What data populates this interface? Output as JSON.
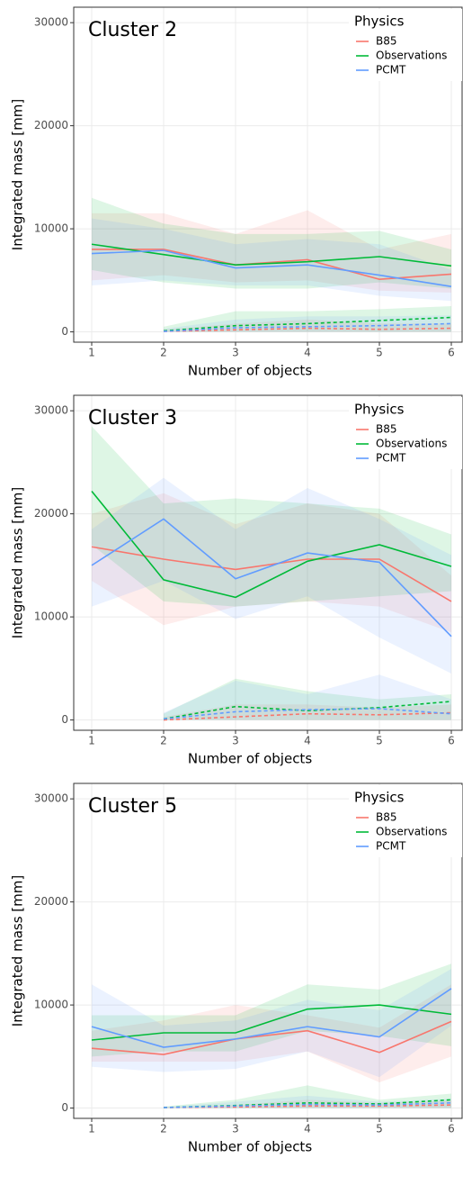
{
  "chart_data": [
    {
      "type": "line",
      "annotation": "Cluster 2",
      "xlabel": "Number of objects",
      "ylabel": "Integrated mass [mm]",
      "legend_title": "Physics",
      "legend": "top-right",
      "grid": true,
      "x": [
        1,
        2,
        3,
        4,
        5,
        6
      ],
      "xlim": [
        0.75,
        6.15
      ],
      "xticks": [
        1,
        2,
        3,
        4,
        5,
        6
      ],
      "ylim": [
        -1000,
        31500
      ],
      "yticks": [
        0,
        10000,
        20000,
        30000
      ],
      "series": [
        {
          "name": "B85",
          "color": "#F8766D",
          "values": [
            8000,
            8000,
            6500,
            7000,
            5100,
            5600
          ],
          "lower": [
            5000,
            5500,
            4800,
            5000,
            4000,
            3800
          ],
          "upper": [
            11500,
            11500,
            9500,
            11800,
            8000,
            9500
          ],
          "values_dashed": [
            null,
            50,
            200,
            350,
            250,
            350
          ],
          "lower_dashed": [
            null,
            0,
            0,
            0,
            0,
            0
          ],
          "upper_dashed": [
            null,
            200,
            800,
            1200,
            800,
            800
          ]
        },
        {
          "name": "Observations",
          "color": "#00BA38",
          "values": [
            8500,
            7500,
            6500,
            6800,
            7300,
            6400
          ],
          "lower": [
            6000,
            4800,
            4200,
            4200,
            4800,
            4200
          ],
          "upper": [
            13000,
            10500,
            9500,
            9500,
            9800,
            8000
          ],
          "values_dashed": [
            null,
            100,
            600,
            800,
            1100,
            1400
          ],
          "lower_dashed": [
            null,
            0,
            0,
            0,
            0,
            0
          ],
          "upper_dashed": [
            null,
            500,
            2000,
            2000,
            2200,
            2500
          ]
        },
        {
          "name": "PCMT",
          "color": "#619CFF",
          "values": [
            7600,
            7900,
            6200,
            6500,
            5500,
            4400
          ],
          "lower": [
            4500,
            5000,
            4500,
            4500,
            3500,
            3000
          ],
          "upper": [
            11000,
            10000,
            8500,
            9000,
            8500,
            6000
          ],
          "values_dashed": [
            null,
            50,
            400,
            500,
            600,
            800
          ],
          "lower_dashed": [
            null,
            0,
            0,
            0,
            0,
            0
          ],
          "upper_dashed": [
            null,
            300,
            1200,
            1500,
            1500,
            1600
          ]
        }
      ]
    },
    {
      "type": "line",
      "annotation": "Cluster 3",
      "xlabel": "Number of objects",
      "ylabel": "Integrated mass [mm]",
      "legend_title": "Physics",
      "legend": "top-right",
      "grid": true,
      "x": [
        1,
        2,
        3,
        4,
        5,
        6
      ],
      "xlim": [
        0.75,
        6.15
      ],
      "xticks": [
        1,
        2,
        3,
        4,
        5,
        6
      ],
      "ylim": [
        -1000,
        31500
      ],
      "yticks": [
        0,
        10000,
        20000,
        30000
      ],
      "series": [
        {
          "name": "B85",
          "color": "#F8766D",
          "values": [
            16800,
            15600,
            14600,
            15600,
            15600,
            11500
          ],
          "lower": [
            13500,
            9200,
            11000,
            11500,
            11000,
            8500
          ],
          "upper": [
            20000,
            22000,
            19000,
            21000,
            20000,
            14000
          ],
          "values_dashed": [
            null,
            0,
            300,
            600,
            500,
            700
          ],
          "lower_dashed": [
            null,
            0,
            0,
            0,
            0,
            0
          ],
          "upper_dashed": [
            null,
            300,
            1500,
            1500,
            1200,
            1500
          ]
        },
        {
          "name": "Observations",
          "color": "#00BA38",
          "values": [
            22200,
            13600,
            11900,
            15400,
            17000,
            14900
          ],
          "lower": [
            17000,
            11500,
            11000,
            11500,
            12000,
            12500
          ],
          "upper": [
            28500,
            21000,
            21500,
            21000,
            20500,
            18000
          ],
          "values_dashed": [
            null,
            100,
            1300,
            900,
            1200,
            1800
          ],
          "lower_dashed": [
            null,
            0,
            0,
            0,
            0,
            0
          ],
          "upper_dashed": [
            null,
            600,
            4000,
            2800,
            2000,
            2500
          ]
        },
        {
          "name": "PCMT",
          "color": "#619CFF",
          "values": [
            15000,
            19500,
            13700,
            16200,
            15300,
            8100
          ],
          "lower": [
            11000,
            13500,
            9800,
            12000,
            8000,
            4500
          ],
          "upper": [
            18500,
            23500,
            18500,
            22500,
            19500,
            16000
          ],
          "values_dashed": [
            null,
            100,
            800,
            1000,
            1100,
            600
          ],
          "lower_dashed": [
            null,
            0,
            0,
            0,
            0,
            0
          ],
          "upper_dashed": [
            null,
            700,
            3800,
            2500,
            4400,
            2000
          ]
        }
      ]
    },
    {
      "type": "line",
      "annotation": "Cluster 5",
      "xlabel": "Number of objects",
      "ylabel": "Integrated mass [mm]",
      "legend_title": "Physics",
      "legend": "top-right",
      "grid": true,
      "x": [
        1,
        2,
        3,
        4,
        5,
        6
      ],
      "xlim": [
        0.75,
        6.15
      ],
      "xticks": [
        1,
        2,
        3,
        4,
        5,
        6
      ],
      "ylim": [
        -1000,
        31500
      ],
      "yticks": [
        0,
        10000,
        20000,
        30000
      ],
      "series": [
        {
          "name": "B85",
          "color": "#F8766D",
          "values": [
            5800,
            5200,
            6700,
            7500,
            5400,
            8400
          ],
          "lower": [
            4500,
            4500,
            4500,
            5500,
            2500,
            5000
          ],
          "upper": [
            7500,
            8500,
            10000,
            9000,
            7800,
            12000
          ],
          "values_dashed": [
            null,
            50,
            100,
            200,
            200,
            300
          ],
          "lower_dashed": [
            null,
            0,
            0,
            0,
            0,
            0
          ],
          "upper_dashed": [
            null,
            100,
            300,
            800,
            500,
            700
          ]
        },
        {
          "name": "Observations",
          "color": "#00BA38",
          "values": [
            6600,
            7300,
            7300,
            9600,
            10000,
            9100
          ],
          "lower": [
            5000,
            5500,
            5500,
            7500,
            7000,
            6000
          ],
          "upper": [
            9000,
            9000,
            9000,
            12000,
            11500,
            14000
          ],
          "values_dashed": [
            null,
            50,
            250,
            500,
            400,
            800
          ],
          "lower_dashed": [
            null,
            0,
            0,
            0,
            0,
            0
          ],
          "upper_dashed": [
            null,
            150,
            800,
            2200,
            800,
            1400
          ]
        },
        {
          "name": "PCMT",
          "color": "#619CFF",
          "values": [
            7900,
            5900,
            6700,
            7900,
            6900,
            11600
          ],
          "lower": [
            4000,
            3500,
            3800,
            5500,
            3000,
            8000
          ],
          "upper": [
            12000,
            8000,
            8500,
            10500,
            9500,
            13500
          ],
          "values_dashed": [
            null,
            50,
            200,
            350,
            300,
            500
          ],
          "lower_dashed": [
            null,
            0,
            0,
            0,
            0,
            0
          ],
          "upper_dashed": [
            null,
            100,
            600,
            1200,
            600,
            900
          ]
        }
      ]
    }
  ]
}
